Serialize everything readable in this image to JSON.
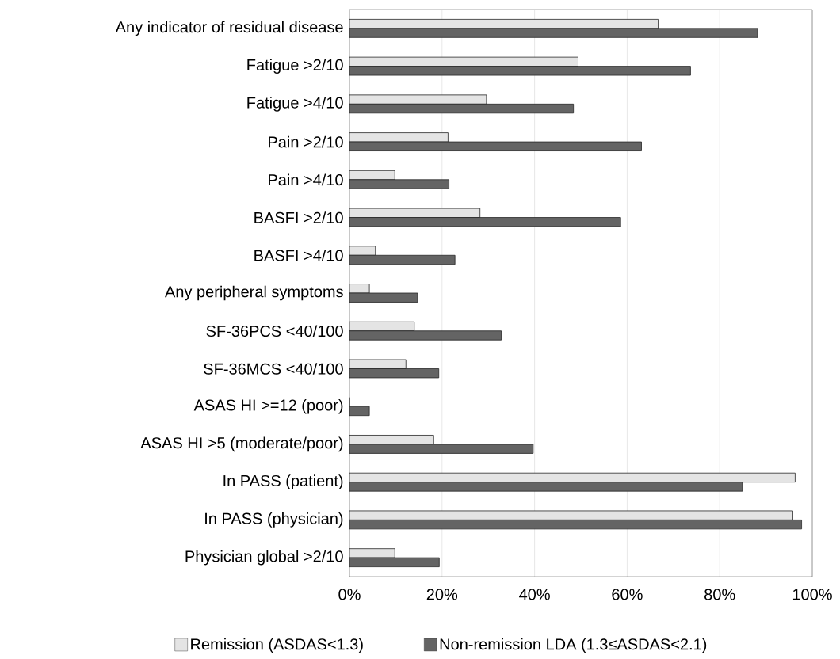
{
  "chart_data": {
    "type": "bar",
    "orientation": "horizontal",
    "categories": [
      "Any indicator of residual disease",
      "Fatigue >2/10",
      "Fatigue >4/10",
      "Pain >2/10",
      "Pain >4/10",
      "BASFI >2/10",
      "BASFI >4/10",
      "Any peripheral symptoms",
      "SF-36PCS <40/100",
      "SF-36MCS <40/100",
      "ASAS HI >=12 (poor)",
      "ASAS HI >5 (moderate/poor)",
      "In PASS (patient)",
      "In PASS (physician)",
      "Physician global >2/10"
    ],
    "series": [
      {
        "name": "Remission (ASDAS<1.3)",
        "color": "#e4e4e4",
        "values": [
          66.7,
          49.4,
          29.6,
          21.3,
          9.8,
          28.2,
          5.6,
          4.3,
          14.0,
          12.2,
          0,
          18.2,
          96.3,
          95.8,
          9.8
        ]
      },
      {
        "name": "Non-remission LDA (1.3≤ASDAS<2.1)",
        "color": "#646464",
        "values": [
          88.2,
          73.7,
          48.4,
          63.1,
          21.5,
          58.6,
          22.8,
          14.7,
          32.8,
          19.3,
          4.3,
          39.7,
          84.9,
          97.7,
          19.4
        ]
      }
    ],
    "xlim": [
      0,
      100
    ],
    "xticks": [
      {
        "value": 0,
        "label": "0%"
      },
      {
        "value": 20,
        "label": "20%"
      },
      {
        "value": 40,
        "label": "40%"
      },
      {
        "value": 60,
        "label": "60%"
      },
      {
        "value": 80,
        "label": "80%"
      },
      {
        "value": 100,
        "label": "100%"
      }
    ],
    "grid": "x",
    "legend": "bottom"
  }
}
